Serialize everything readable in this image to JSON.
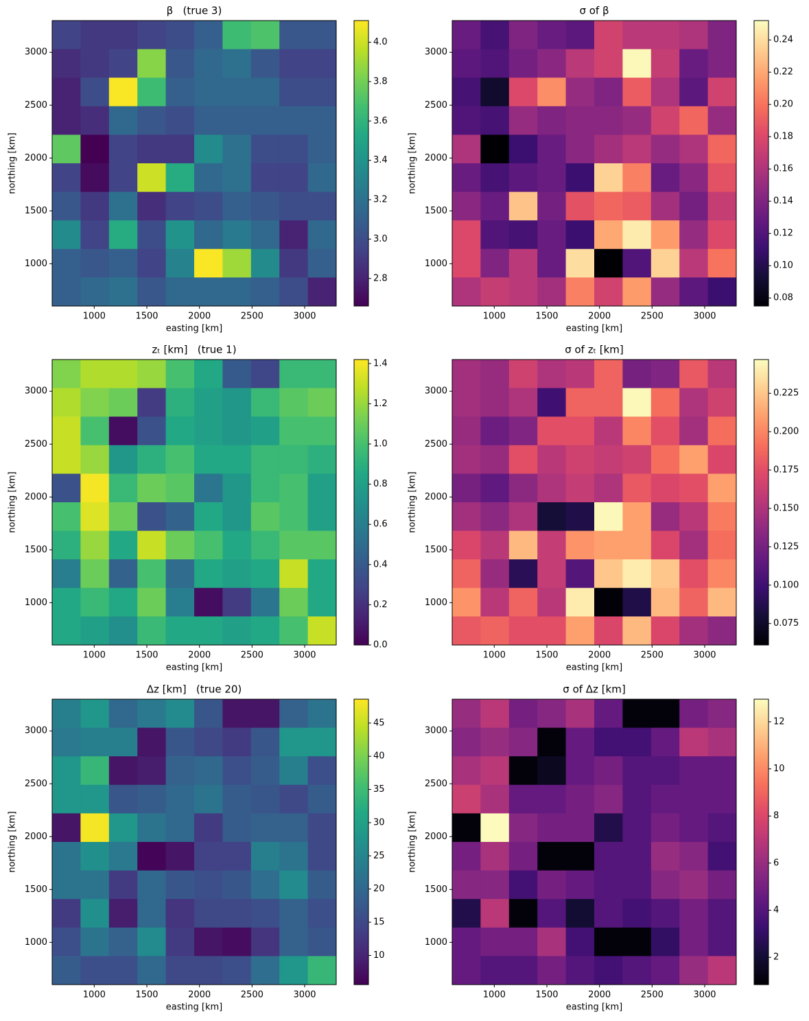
{
  "chart_data": [
    {
      "type": "heatmap",
      "title": "β   (true 3)",
      "x_label": "easting [km]",
      "y_label": "northing [km]",
      "colormap": "viridis",
      "x": [
        735,
        1005,
        1275,
        1545,
        1815,
        2085,
        2355,
        2625,
        2895,
        3165
      ],
      "y": [
        3165,
        2895,
        2625,
        2355,
        2085,
        1815,
        1545,
        1275,
        1005,
        735
      ],
      "xlim": [
        600,
        3300
      ],
      "ylim": [
        600,
        3300
      ],
      "xticks": [
        1000,
        1500,
        2000,
        2500,
        3000
      ],
      "yticks": [
        1000,
        1500,
        2000,
        2500,
        3000
      ],
      "zlim": [
        2.66,
        4.11
      ],
      "zticks": [
        2.8,
        {
          "value": 3,
          "label": "3.0"
        },
        3.2,
        3.4,
        3.6,
        3.8,
        {
          "value": 4,
          "label": "4.0"
        }
      ],
      "values": [
        [
          2.95,
          2.9,
          2.9,
          2.95,
          3.0,
          3.1,
          3.65,
          3.7,
          3.05,
          3.05
        ],
        [
          2.85,
          2.9,
          2.95,
          3.85,
          3.05,
          3.15,
          3.2,
          3.05,
          2.95,
          2.95
        ],
        [
          2.8,
          3.0,
          4.1,
          3.65,
          3.1,
          3.15,
          3.15,
          3.15,
          3.0,
          3.0
        ],
        [
          2.8,
          2.85,
          3.15,
          3.05,
          3.0,
          3.1,
          3.1,
          3.1,
          3.1,
          3.1
        ],
        [
          3.75,
          2.66,
          2.95,
          2.9,
          2.9,
          3.35,
          3.2,
          3.0,
          3.0,
          3.1
        ],
        [
          2.95,
          2.7,
          2.95,
          4.0,
          3.55,
          3.15,
          3.2,
          2.95,
          2.95,
          3.15
        ],
        [
          3.05,
          2.9,
          3.2,
          2.85,
          2.95,
          3.0,
          3.1,
          3.05,
          3.0,
          3.0
        ],
        [
          3.35,
          2.95,
          3.55,
          3.0,
          3.4,
          3.15,
          3.25,
          3.15,
          2.8,
          3.15
        ],
        [
          3.1,
          3.05,
          3.1,
          2.95,
          3.3,
          4.1,
          3.9,
          3.35,
          2.9,
          3.1
        ],
        [
          3.1,
          3.15,
          3.2,
          3.05,
          3.15,
          3.15,
          3.15,
          3.1,
          3.0,
          2.8
        ]
      ]
    },
    {
      "type": "heatmap",
      "title": "σ of β",
      "x_label": "easting [km]",
      "y_label": "northing [km]",
      "colormap": "magma",
      "x": [
        735,
        1005,
        1275,
        1545,
        1815,
        2085,
        2355,
        2625,
        2895,
        3165
      ],
      "y": [
        3165,
        2895,
        2625,
        2355,
        2085,
        1815,
        1545,
        1275,
        1005,
        735
      ],
      "xlim": [
        600,
        3300
      ],
      "ylim": [
        600,
        3300
      ],
      "xticks": [
        1000,
        1500,
        2000,
        2500,
        3000
      ],
      "yticks": [
        1000,
        1500,
        2000,
        2500,
        3000
      ],
      "zlim": [
        0.075,
        0.252
      ],
      "zticks": [
        0.08,
        {
          "value": 0.1,
          "label": "0.10"
        },
        0.12,
        0.14,
        0.16,
        0.18,
        {
          "value": 0.2,
          "label": "0.20"
        },
        0.22,
        0.24
      ],
      "values": [
        [
          0.13,
          0.115,
          0.14,
          0.13,
          0.125,
          0.175,
          0.165,
          0.165,
          0.16,
          0.14
        ],
        [
          0.125,
          0.12,
          0.135,
          0.145,
          0.165,
          0.175,
          0.25,
          0.17,
          0.13,
          0.14
        ],
        [
          0.115,
          0.09,
          0.18,
          0.21,
          0.15,
          0.14,
          0.19,
          0.16,
          0.125,
          0.175
        ],
        [
          0.12,
          0.115,
          0.15,
          0.14,
          0.145,
          0.145,
          0.15,
          0.175,
          0.195,
          0.15
        ],
        [
          0.16,
          0.075,
          0.11,
          0.13,
          0.145,
          0.155,
          0.165,
          0.15,
          0.16,
          0.195
        ],
        [
          0.13,
          0.115,
          0.125,
          0.13,
          0.11,
          0.235,
          0.205,
          0.13,
          0.145,
          0.185
        ],
        [
          0.145,
          0.13,
          0.23,
          0.135,
          0.185,
          0.195,
          0.19,
          0.155,
          0.135,
          0.17
        ],
        [
          0.18,
          0.12,
          0.115,
          0.13,
          0.11,
          0.22,
          0.245,
          0.215,
          0.15,
          0.18
        ],
        [
          0.18,
          0.14,
          0.165,
          0.13,
          0.24,
          0.075,
          0.12,
          0.235,
          0.165,
          0.2
        ],
        [
          0.16,
          0.17,
          0.165,
          0.155,
          0.205,
          0.175,
          0.215,
          0.15,
          0.125,
          0.11
        ]
      ]
    },
    {
      "type": "heatmap",
      "title": "zₜ [km]   (true 1)",
      "x_label": "easting [km]",
      "y_label": "northing [km]",
      "colormap": "viridis",
      "x": [
        735,
        1005,
        1275,
        1545,
        1815,
        2085,
        2355,
        2625,
        2895,
        3165
      ],
      "y": [
        3165,
        2895,
        2625,
        2355,
        2085,
        1815,
        1545,
        1275,
        1005,
        735
      ],
      "xlim": [
        600,
        3300
      ],
      "ylim": [
        600,
        3300
      ],
      "xticks": [
        1000,
        1500,
        2000,
        2500,
        3000
      ],
      "yticks": [
        1000,
        1500,
        2000,
        2500,
        3000
      ],
      "zlim": [
        0,
        1.42
      ],
      "zticks": [
        {
          "value": 0,
          "label": "0.0"
        },
        0.2,
        0.4,
        0.6,
        0.8,
        {
          "value": 1,
          "label": "1.0"
        },
        1.2,
        1.4
      ],
      "values": [
        [
          1.15,
          1.25,
          1.25,
          1.2,
          1.0,
          0.85,
          0.4,
          0.3,
          0.95,
          0.95
        ],
        [
          1.25,
          1.15,
          1.1,
          0.25,
          0.9,
          0.8,
          0.75,
          0.95,
          1.05,
          1.1
        ],
        [
          1.3,
          1.0,
          0.05,
          0.35,
          0.85,
          0.8,
          0.75,
          0.8,
          1.0,
          1.0
        ],
        [
          1.3,
          1.2,
          0.75,
          0.9,
          1.0,
          0.85,
          0.85,
          0.95,
          0.95,
          0.9
        ],
        [
          0.35,
          1.4,
          0.95,
          1.1,
          1.05,
          0.55,
          0.75,
          0.95,
          1.0,
          0.8
        ],
        [
          1.0,
          1.35,
          1.1,
          0.35,
          0.45,
          0.85,
          0.75,
          1.05,
          1.0,
          0.8
        ],
        [
          0.9,
          1.2,
          0.85,
          1.3,
          1.1,
          1.0,
          0.85,
          0.95,
          1.05,
          1.05
        ],
        [
          0.6,
          1.1,
          0.45,
          1.0,
          0.5,
          0.85,
          0.8,
          0.85,
          1.3,
          0.85
        ],
        [
          0.85,
          0.95,
          0.85,
          1.1,
          0.6,
          0.05,
          0.25,
          0.55,
          1.1,
          0.85
        ],
        [
          0.85,
          0.8,
          0.7,
          0.95,
          0.85,
          0.85,
          0.8,
          0.85,
          1.0,
          1.3
        ]
      ]
    },
    {
      "type": "heatmap",
      "title": "σ of zₜ [km]",
      "x_label": "easting [km]",
      "y_label": "northing [km]",
      "colormap": "magma",
      "x": [
        735,
        1005,
        1275,
        1545,
        1815,
        2085,
        2355,
        2625,
        2895,
        3165
      ],
      "y": [
        3165,
        2895,
        2625,
        2355,
        2085,
        1815,
        1545,
        1275,
        1005,
        735
      ],
      "xlim": [
        600,
        3300
      ],
      "ylim": [
        600,
        3300
      ],
      "xticks": [
        1000,
        1500,
        2000,
        2500,
        3000
      ],
      "yticks": [
        1000,
        1500,
        2000,
        2500,
        3000
      ],
      "zlim": [
        0.061,
        0.247
      ],
      "zticks": [
        0.075,
        {
          "value": 0.1,
          "label": "0.100"
        },
        0.125,
        {
          "value": 0.15,
          "label": "0.150"
        },
        0.175,
        {
          "value": 0.2,
          "label": "0.200"
        },
        0.225
      ],
      "values": [
        [
          0.145,
          0.14,
          0.165,
          0.15,
          0.155,
          0.185,
          0.125,
          0.13,
          0.18,
          0.155
        ],
        [
          0.145,
          0.14,
          0.15,
          0.1,
          0.185,
          0.185,
          0.245,
          0.19,
          0.15,
          0.165
        ],
        [
          0.14,
          0.12,
          0.13,
          0.175,
          0.175,
          0.155,
          0.2,
          0.175,
          0.145,
          0.19
        ],
        [
          0.145,
          0.14,
          0.175,
          0.155,
          0.165,
          0.16,
          0.165,
          0.19,
          0.21,
          0.17
        ],
        [
          0.125,
          0.115,
          0.135,
          0.15,
          0.16,
          0.15,
          0.18,
          0.17,
          0.175,
          0.21
        ],
        [
          0.145,
          0.135,
          0.15,
          0.08,
          0.085,
          0.245,
          0.21,
          0.14,
          0.155,
          0.195
        ],
        [
          0.17,
          0.155,
          0.22,
          0.16,
          0.205,
          0.21,
          0.21,
          0.17,
          0.145,
          0.19
        ],
        [
          0.185,
          0.14,
          0.09,
          0.16,
          0.11,
          0.225,
          0.24,
          0.225,
          0.175,
          0.2
        ],
        [
          0.205,
          0.155,
          0.185,
          0.155,
          0.24,
          0.062,
          0.085,
          0.22,
          0.185,
          0.22
        ],
        [
          0.18,
          0.185,
          0.175,
          0.175,
          0.21,
          0.17,
          0.22,
          0.17,
          0.145,
          0.135
        ]
      ]
    },
    {
      "type": "heatmap",
      "title": "Δz [km]   (true 20)",
      "x_label": "easting [km]",
      "y_label": "northing [km]",
      "colormap": "viridis",
      "x": [
        735,
        1005,
        1275,
        1545,
        1815,
        2085,
        2355,
        2625,
        2895,
        3165
      ],
      "y": [
        3165,
        2895,
        2625,
        2355,
        2085,
        1815,
        1545,
        1275,
        1005,
        735
      ],
      "xlim": [
        600,
        3300
      ],
      "ylim": [
        600,
        3300
      ],
      "xticks": [
        1000,
        1500,
        2000,
        2500,
        3000
      ],
      "yticks": [
        1000,
        1500,
        2000,
        2500,
        3000
      ],
      "zlim": [
        5.6,
        48.6
      ],
      "zticks": [
        10,
        15,
        20,
        25,
        30,
        35,
        40,
        45
      ],
      "values": [
        [
          24,
          28,
          20,
          23,
          26,
          17,
          8,
          8,
          19,
          22
        ],
        [
          23,
          24,
          24,
          8,
          17,
          15,
          13,
          17,
          28,
          28
        ],
        [
          28,
          34,
          8,
          9,
          19,
          20,
          16,
          18,
          24,
          16
        ],
        [
          28,
          28,
          17,
          18,
          20,
          22,
          18,
          17,
          15,
          18
        ],
        [
          8,
          48,
          28,
          22,
          20,
          13,
          18,
          19,
          19,
          15
        ],
        [
          22,
          27,
          23,
          6,
          8,
          14,
          14,
          24,
          22,
          15
        ],
        [
          22,
          22,
          13,
          20,
          17,
          16,
          17,
          21,
          26,
          18
        ],
        [
          13,
          27,
          9,
          20,
          12,
          15,
          15,
          16,
          19,
          16
        ],
        [
          16,
          22,
          19,
          26,
          13,
          8,
          7,
          12,
          19,
          17
        ],
        [
          18,
          16,
          16,
          20,
          15,
          15,
          16,
          21,
          28,
          34
        ]
      ]
    },
    {
      "type": "heatmap",
      "title": "σ of Δz [km]",
      "x_label": "easting [km]",
      "y_label": "northing [km]",
      "colormap": "magma",
      "x": [
        735,
        1005,
        1275,
        1545,
        1815,
        2085,
        2355,
        2625,
        2895,
        3165
      ],
      "y": [
        3165,
        2895,
        2625,
        2355,
        2085,
        1815,
        1545,
        1275,
        1005,
        735
      ],
      "xlim": [
        600,
        3300
      ],
      "ylim": [
        600,
        3300
      ],
      "xticks": [
        1000,
        1500,
        2000,
        2500,
        3000
      ],
      "yticks": [
        1000,
        1500,
        2000,
        2500,
        3000
      ],
      "zlim": [
        0.84,
        12.96
      ],
      "zticks": [
        2,
        4,
        6,
        8,
        10,
        12
      ],
      "values": [
        [
          6,
          7,
          5,
          5.5,
          6.5,
          4.5,
          1,
          1,
          5,
          5.5
        ],
        [
          5.5,
          6,
          5.5,
          1,
          4.5,
          3.5,
          3.5,
          4.5,
          7,
          6.5
        ],
        [
          6.5,
          7,
          1,
          1.5,
          4.5,
          5,
          4,
          4,
          4.5,
          4.5
        ],
        [
          7.5,
          6.5,
          4.5,
          4.5,
          5,
          5.5,
          4,
          4.5,
          4.5,
          4.5
        ],
        [
          1,
          12.9,
          5.5,
          5,
          5,
          2.5,
          4,
          5,
          4.5,
          4
        ],
        [
          5,
          6.5,
          5,
          1,
          1,
          4,
          4,
          6,
          5.5,
          3.5
        ],
        [
          5.5,
          5.5,
          3.5,
          5,
          4.5,
          4,
          4,
          5.5,
          6,
          5
        ],
        [
          2.5,
          7,
          1,
          4,
          2,
          4,
          3.5,
          4,
          5,
          4
        ],
        [
          4.5,
          5,
          5,
          6.5,
          3.5,
          1,
          1,
          3,
          5,
          4
        ],
        [
          4.5,
          4,
          4,
          5,
          4,
          3.5,
          4,
          4.5,
          6,
          7
        ]
      ]
    }
  ]
}
